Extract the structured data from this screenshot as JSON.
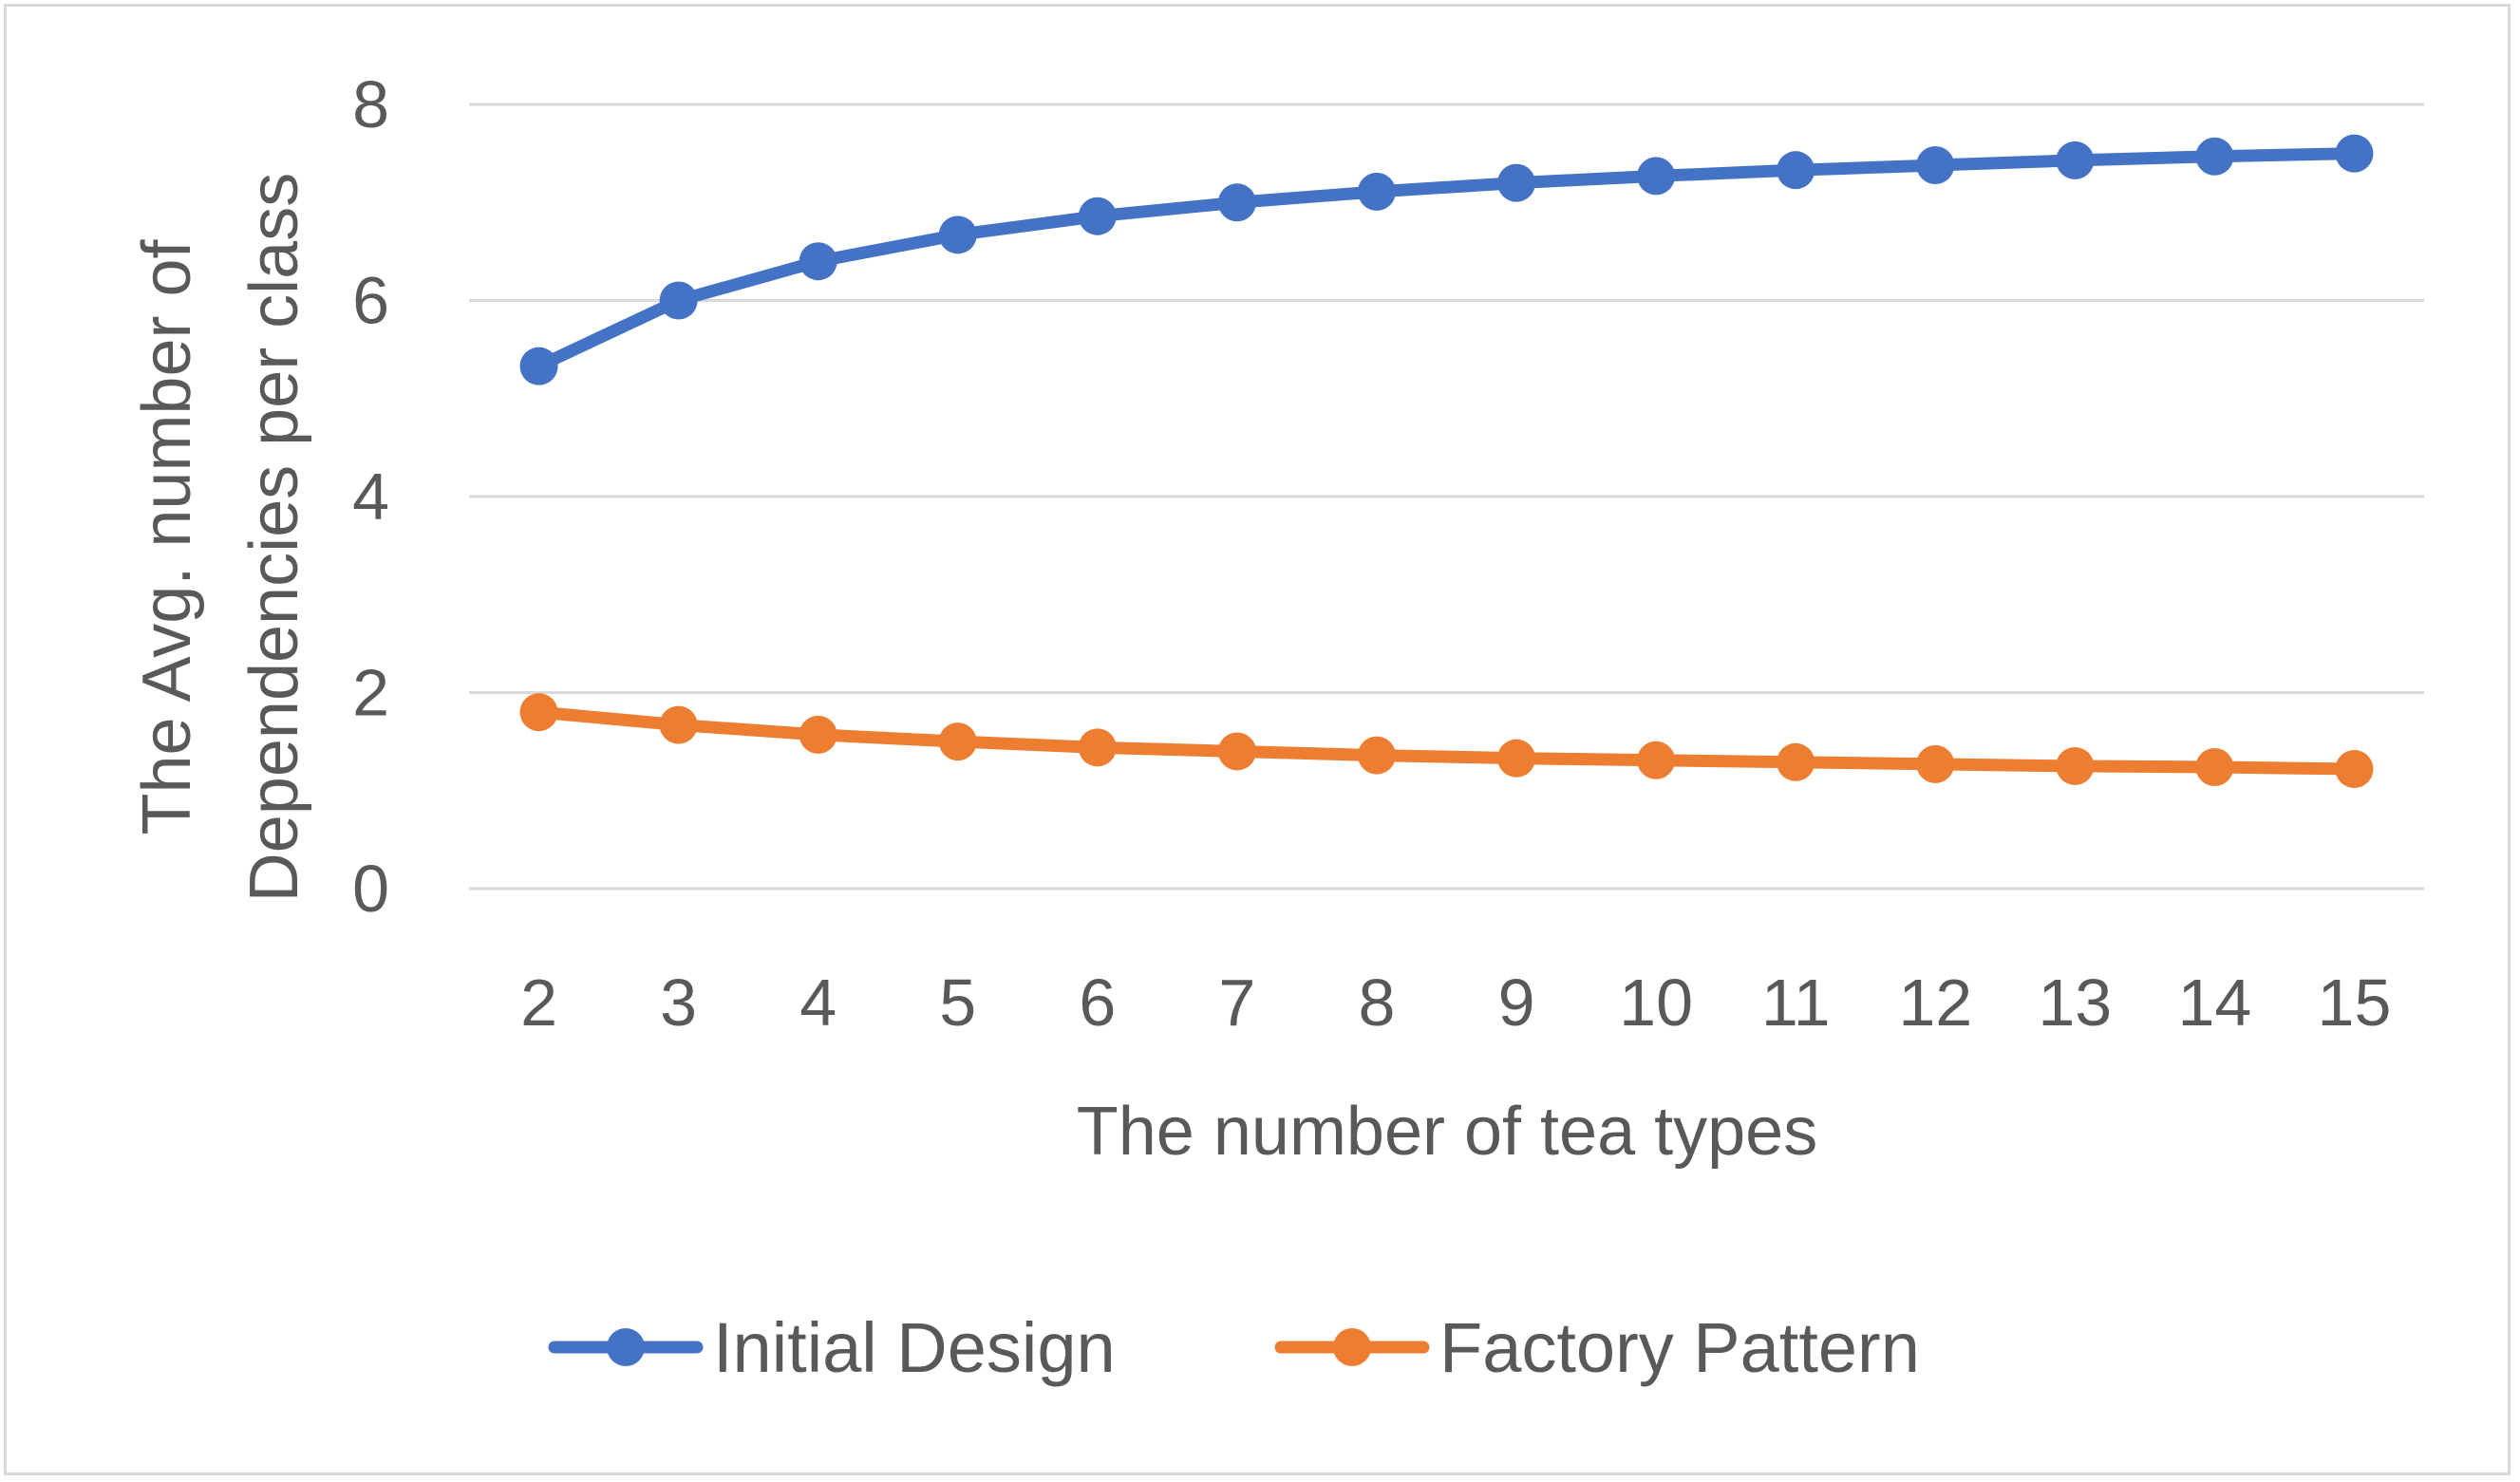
{
  "chart_data": {
    "type": "line",
    "title": "",
    "xlabel": "The number of tea types",
    "ylabel_lines": [
      "The Avg. number of",
      "Dependencies per class"
    ],
    "x": [
      2,
      3,
      4,
      5,
      6,
      7,
      8,
      9,
      10,
      11,
      12,
      13,
      14,
      15
    ],
    "ylim": [
      0,
      8
    ],
    "yticks": [
      0,
      2,
      4,
      6,
      8
    ],
    "grid": true,
    "legend_position": "bottom",
    "series": [
      {
        "name": "Initial Design",
        "color": "#4472c4",
        "values": [
          5.33,
          6.0,
          6.4,
          6.67,
          6.86,
          7.0,
          7.11,
          7.2,
          7.27,
          7.33,
          7.38,
          7.43,
          7.47,
          7.5
        ]
      },
      {
        "name": "Factory Pattern",
        "color": "#ed7d31",
        "values": [
          1.8,
          1.67,
          1.57,
          1.5,
          1.44,
          1.4,
          1.36,
          1.33,
          1.31,
          1.29,
          1.27,
          1.25,
          1.24,
          1.22
        ]
      }
    ]
  }
}
